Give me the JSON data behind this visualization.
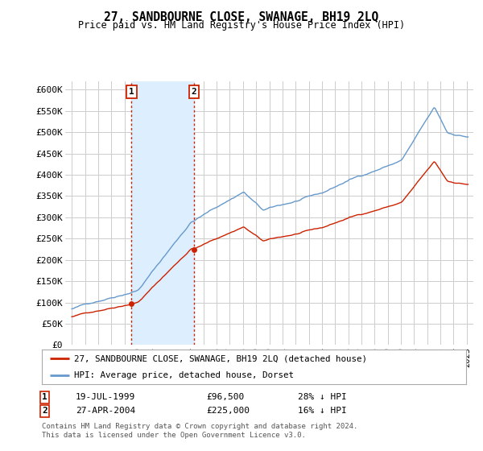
{
  "title": "27, SANDBOURNE CLOSE, SWANAGE, BH19 2LQ",
  "subtitle": "Price paid vs. HM Land Registry's House Price Index (HPI)",
  "hpi_color": "#6699cc",
  "price_color": "#cc2200",
  "marker1_price": 96500,
  "marker2_price": 225000,
  "marker1_year": 1999.54,
  "marker2_year": 2004.29,
  "marker1_date_str": "19-JUL-1999",
  "marker2_date_str": "27-APR-2004",
  "marker1_hpi_pct": "28% ↓ HPI",
  "marker2_hpi_pct": "16% ↓ HPI",
  "legend_price_label": "27, SANDBOURNE CLOSE, SWANAGE, BH19 2LQ (detached house)",
  "legend_hpi_label": "HPI: Average price, detached house, Dorset",
  "footer": "Contains HM Land Registry data © Crown copyright and database right 2024.\nThis data is licensed under the Open Government Licence v3.0.",
  "ylim": [
    0,
    620000
  ],
  "yticks": [
    0,
    50000,
    100000,
    150000,
    200000,
    250000,
    300000,
    350000,
    400000,
    450000,
    500000,
    550000,
    600000
  ],
  "xmin": 1994.5,
  "xmax": 2025.5,
  "background_color": "#ffffff",
  "grid_color": "#cccccc",
  "span_color": "#ddeeff"
}
